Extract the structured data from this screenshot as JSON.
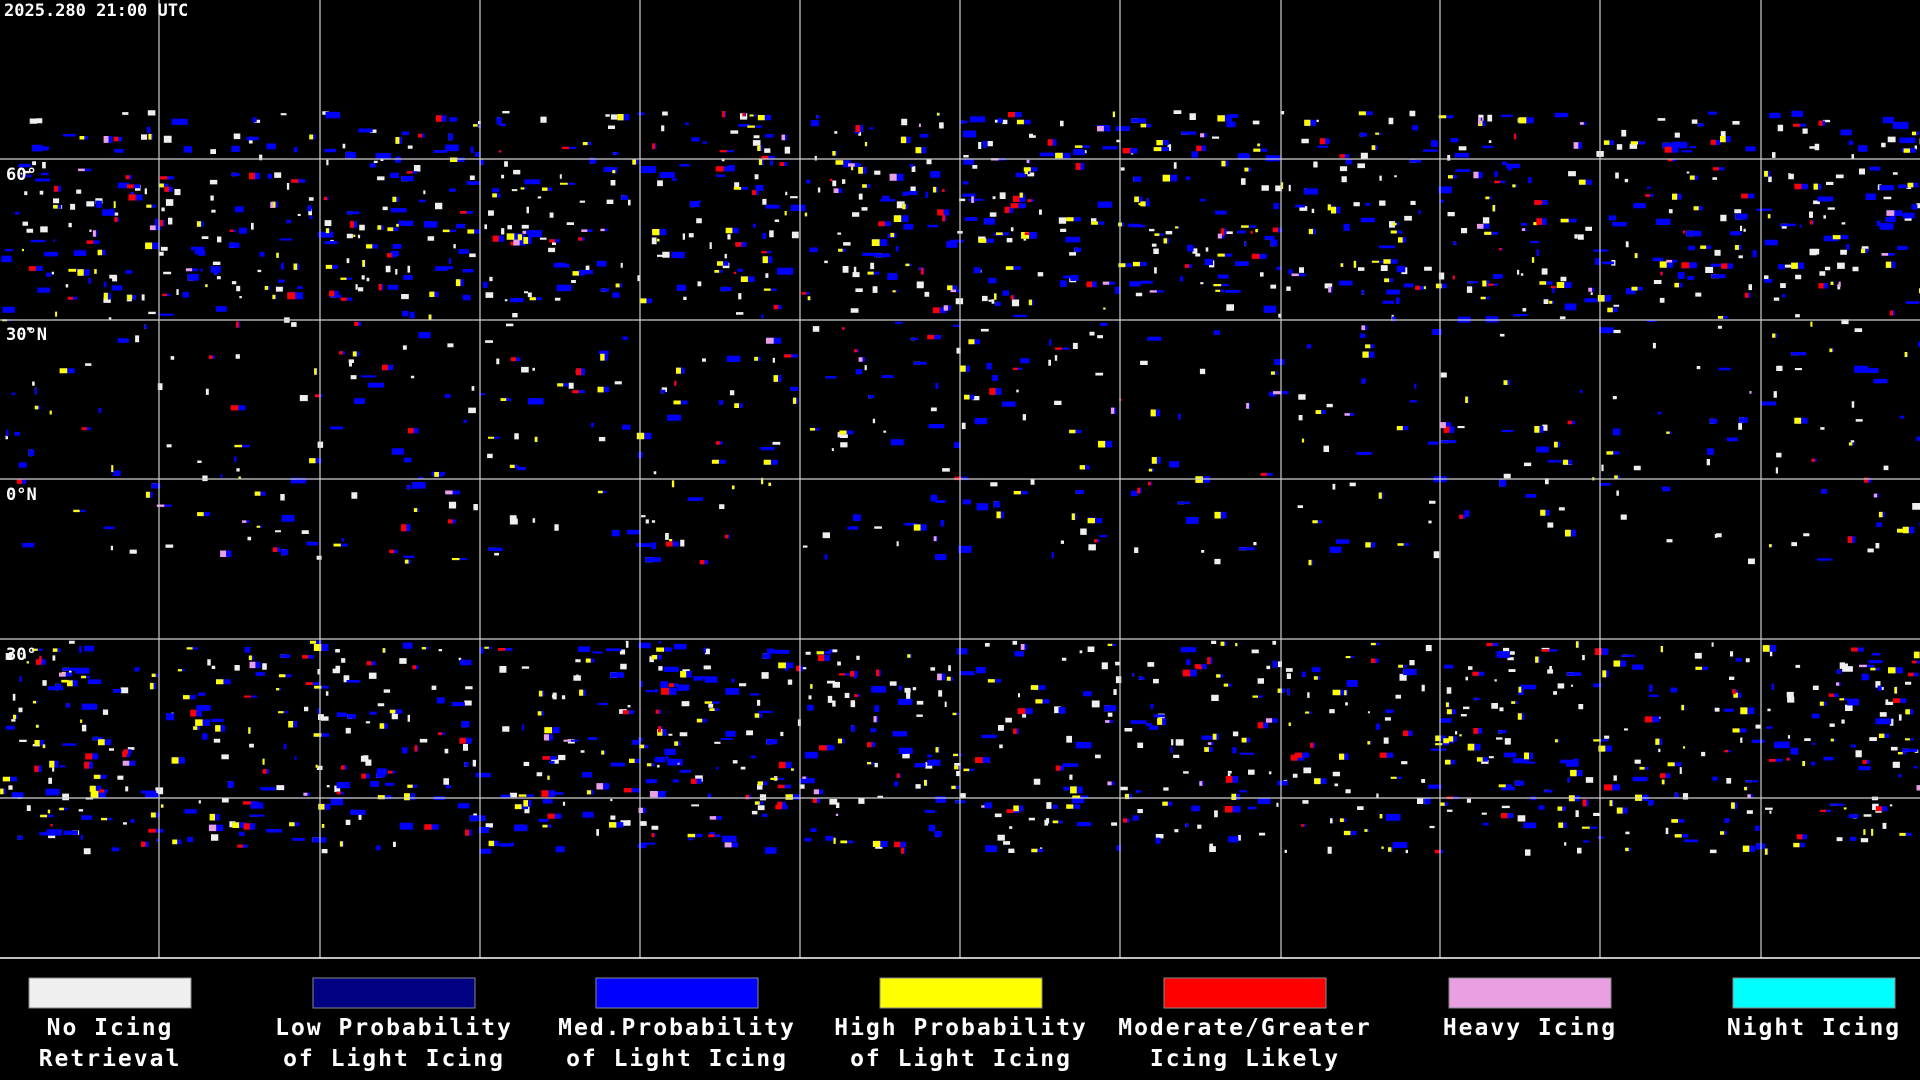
{
  "header": {
    "timestamp": "2025.280 21:00 UTC"
  },
  "map": {
    "latitude_labels": [
      "60°",
      "30°N",
      "0°N",
      "30°"
    ]
  },
  "legend": {
    "items": [
      {
        "lines": [
          "No Icing",
          "Retrieval"
        ],
        "color": "#efefef"
      },
      {
        "lines": [
          "Low Probability",
          "of Light Icing"
        ],
        "color": "#000080"
      },
      {
        "lines": [
          "Med.Probability",
          "of Light Icing"
        ],
        "color": "#0000ff"
      },
      {
        "lines": [
          "High Probability",
          "of Light Icing"
        ],
        "color": "#ffff00"
      },
      {
        "lines": [
          "Moderate/Greater",
          "Icing Likely"
        ],
        "color": "#ff0000"
      },
      {
        "lines": [
          "Heavy Icing"
        ],
        "color": "#e8a0e0"
      },
      {
        "lines": [
          "Night Icing"
        ],
        "color": "#00ffff"
      }
    ]
  }
}
